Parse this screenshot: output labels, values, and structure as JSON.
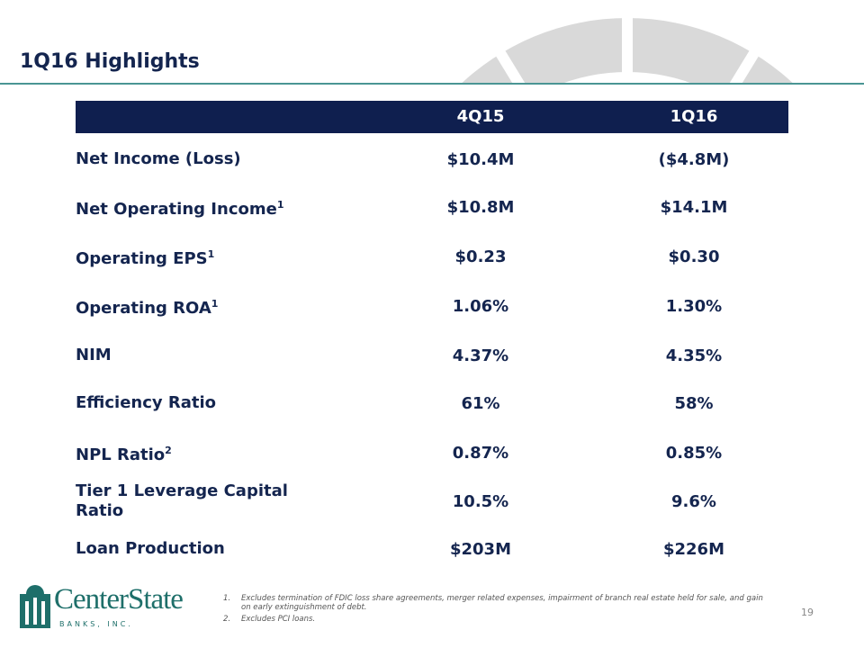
{
  "header": {
    "title": "1Q16 Highlights"
  },
  "table": {
    "columns": [
      "4Q15",
      "1Q16"
    ],
    "rows": [
      {
        "label": "Net Income (Loss)",
        "values": [
          "$10.4M",
          "($4.8M)"
        ]
      },
      {
        "label": "Net Operating Income",
        "footnote": "1",
        "values": [
          "$10.8M",
          "$14.1M"
        ]
      },
      {
        "label": "Operating EPS",
        "footnote": "1",
        "values": [
          "$0.23",
          "$0.30"
        ]
      },
      {
        "label": "Operating ROA",
        "footnote": "1",
        "values": [
          "1.06%",
          "1.30%"
        ]
      },
      {
        "label": "NIM",
        "values": [
          "4.37%",
          "4.35%"
        ]
      },
      {
        "label": "Efficiency Ratio",
        "values": [
          "61%",
          "58%"
        ]
      },
      {
        "label": "NPL Ratio",
        "footnote": "2",
        "values": [
          "0.87%",
          "0.85%"
        ]
      },
      {
        "label": "Tier 1 Leverage Capital Ratio",
        "values": [
          "10.5%",
          "9.6%"
        ]
      },
      {
        "label": "Loan Production",
        "values": [
          "$203M",
          "$226M"
        ]
      }
    ]
  },
  "footnotes": [
    {
      "number": "1.",
      "text": "Excludes termination of FDIC loss share agreements, merger related expenses, impairment of branch real estate held for sale, and gain on early extinguishment of debt."
    },
    {
      "number": "2.",
      "text": "Excludes PCI loans."
    }
  ],
  "page_number": "19",
  "logo": {
    "name": "CenterState",
    "sub": "BANKS, INC."
  }
}
